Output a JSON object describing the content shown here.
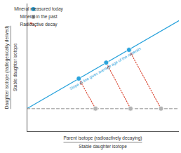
{
  "chart_data": {
    "type": "scatter",
    "x_label": {
      "numerator": "Parent isotope (radioactively decaying)",
      "denominator": "Stable daughter isotope"
    },
    "y_label": {
      "numerator": "Daughter isotope (radiogenically derived)",
      "denominator": "Stable daughter isotope"
    },
    "xlim": [
      0,
      10
    ],
    "ylim": [
      0,
      10
    ],
    "xticks": [],
    "yticks": [],
    "tick_labels": false,
    "grid": false,
    "legend": "top-left",
    "series": [
      {
        "name": "Mineral measured today",
        "color": "#2aa3dc",
        "marker": "circle",
        "x": [
          3.4,
          5.2,
          6.7
        ],
        "y": [
          4.15,
          5.4,
          6.4
        ]
      },
      {
        "name": "Mineral in the past",
        "color": "#b3b3b3",
        "marker": "circle",
        "x": [
          4.5,
          6.8,
          8.8
        ],
        "y": [
          1.8,
          1.8,
          1.8
        ]
      },
      {
        "name": "Radioactive decay",
        "type": "arrow",
        "color": "#d9402b",
        "line_style": "dotted",
        "from": "Mineral in the past",
        "to": "Mineral measured today"
      }
    ],
    "lines": [
      {
        "type": "line",
        "color": "#2aa3dc",
        "line_style": "solid",
        "x": [
          0,
          10
        ],
        "y": [
          1.8,
          8.7
        ],
        "annotation": "Slope of line gives average age of the minerals"
      },
      {
        "type": "line",
        "color": "#b3b3b3",
        "line_style": "dashed",
        "x": [
          0,
          10
        ],
        "y": [
          1.8,
          1.8
        ]
      }
    ]
  }
}
